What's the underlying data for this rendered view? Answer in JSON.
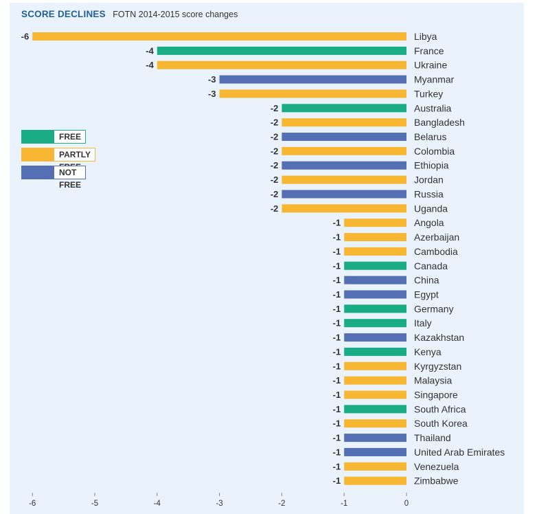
{
  "chart_data": {
    "type": "bar",
    "orientation": "horizontal",
    "title": "SCORE DECLINES",
    "subtitle": "FOTN 2014-2015 score changes",
    "xlabel": "",
    "ylabel": "",
    "xlim": [
      -6,
      0
    ],
    "x_ticks": [
      "-6",
      "-5",
      "-4",
      "-3",
      "-2",
      "-1",
      "0"
    ],
    "grid": false,
    "legend_position": "left-middle",
    "legend": [
      {
        "label": "FREE",
        "status": "free"
      },
      {
        "label": "PARTLY FREE",
        "status": "partly"
      },
      {
        "label": "NOT FREE",
        "status": "notfree"
      }
    ],
    "colors": {
      "free": "#1aac84",
      "partly": "#f7b733",
      "notfree": "#556fb5"
    },
    "bars": [
      {
        "country": "Libya",
        "value": -6,
        "label": "-6",
        "status": "partly"
      },
      {
        "country": "France",
        "value": -4,
        "label": "-4",
        "status": "free"
      },
      {
        "country": "Ukraine",
        "value": -4,
        "label": "-4",
        "status": "partly"
      },
      {
        "country": "Myanmar",
        "value": -3,
        "label": "-3",
        "status": "notfree"
      },
      {
        "country": "Turkey",
        "value": -3,
        "label": "-3",
        "status": "partly"
      },
      {
        "country": "Australia",
        "value": -2,
        "label": "-2",
        "status": "free"
      },
      {
        "country": "Bangladesh",
        "value": -2,
        "label": "-2",
        "status": "partly"
      },
      {
        "country": "Belarus",
        "value": -2,
        "label": "-2",
        "status": "notfree"
      },
      {
        "country": "Colombia",
        "value": -2,
        "label": "-2",
        "status": "partly"
      },
      {
        "country": "Ethiopia",
        "value": -2,
        "label": "-2",
        "status": "notfree"
      },
      {
        "country": "Jordan",
        "value": -2,
        "label": "-2",
        "status": "partly"
      },
      {
        "country": "Russia",
        "value": -2,
        "label": "-2",
        "status": "notfree"
      },
      {
        "country": "Uganda",
        "value": -2,
        "label": "-2",
        "status": "partly"
      },
      {
        "country": "Angola",
        "value": -1,
        "label": "-1",
        "status": "partly"
      },
      {
        "country": "Azerbaijan",
        "value": -1,
        "label": "-1",
        "status": "partly"
      },
      {
        "country": "Cambodia",
        "value": -1,
        "label": "-1",
        "status": "partly"
      },
      {
        "country": "Canada",
        "value": -1,
        "label": "-1",
        "status": "free"
      },
      {
        "country": "China",
        "value": -1,
        "label": "-1",
        "status": "notfree"
      },
      {
        "country": "Egypt",
        "value": -1,
        "label": "-1",
        "status": "notfree"
      },
      {
        "country": "Germany",
        "value": -1,
        "label": "-1",
        "status": "free"
      },
      {
        "country": "Italy",
        "value": -1,
        "label": "-1",
        "status": "free"
      },
      {
        "country": "Kazakhstan",
        "value": -1,
        "label": "-1",
        "status": "notfree"
      },
      {
        "country": "Kenya",
        "value": -1,
        "label": "-1",
        "status": "free"
      },
      {
        "country": "Kyrgyzstan",
        "value": -1,
        "label": "-1",
        "status": "partly"
      },
      {
        "country": "Malaysia",
        "value": -1,
        "label": "-1",
        "status": "partly"
      },
      {
        "country": "Singapore",
        "value": -1,
        "label": "-1",
        "status": "partly"
      },
      {
        "country": "South Africa",
        "value": -1,
        "label": "-1",
        "status": "free"
      },
      {
        "country": "South Korea",
        "value": -1,
        "label": "-1",
        "status": "partly"
      },
      {
        "country": "Thailand",
        "value": -1,
        "label": "-1",
        "status": "notfree"
      },
      {
        "country": "United Arab Emirates",
        "value": -1,
        "label": "-1",
        "status": "notfree"
      },
      {
        "country": "Venezuela",
        "value": -1,
        "label": "-1",
        "status": "partly"
      },
      {
        "country": "Zimbabwe",
        "value": -1,
        "label": "-1",
        "status": "partly"
      }
    ]
  }
}
